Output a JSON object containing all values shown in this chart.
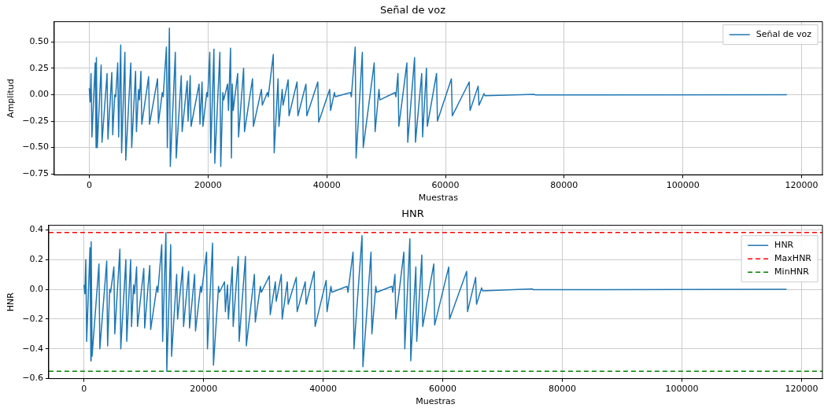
{
  "chart_data": [
    {
      "type": "line",
      "title": "Señal de voz",
      "xlabel": "Muestras",
      "ylabel": "Amplitud",
      "xlim": [
        -5900,
        123500
      ],
      "ylim": [
        -0.76,
        0.69
      ],
      "xticks": [
        0,
        20000,
        40000,
        60000,
        80000,
        100000,
        120000
      ],
      "yticks": [
        {
          "value": -0.75,
          "label": "−0.75"
        },
        {
          "value": -0.5,
          "label": "−0.50"
        },
        {
          "value": -0.25,
          "label": "−0.25"
        },
        {
          "value": 0,
          "label": "0.00"
        },
        {
          "value": 0.25,
          "label": "0.25"
        },
        {
          "value": 0.5,
          "label": "0.50"
        }
      ],
      "grid": true,
      "legend": "top right",
      "series": [
        {
          "name": "Señal de voz",
          "color": "#1f77b4",
          "x": [
            0,
            150,
            300,
            450,
            1000,
            1150,
            1200,
            1350,
            2000,
            2150,
            3000,
            3150,
            3800,
            3950,
            4300,
            4450,
            4800,
            4950,
            5300,
            5450,
            6000,
            6150,
            7000,
            7150,
            7800,
            7950,
            8300,
            8450,
            8700,
            8850,
            10000,
            10150,
            11500,
            11650,
            12300,
            12450,
            13000,
            13150,
            13500,
            13650,
            14500,
            14650,
            15500,
            15650,
            16500,
            16650,
            17000,
            17150,
            18500,
            18650,
            19000,
            19150,
            19800,
            19950,
            20300,
            20450,
            21000,
            21150,
            22000,
            22150,
            22500,
            22650,
            23300,
            23450,
            23800,
            23950,
            24100,
            24250,
            25000,
            25150,
            26000,
            26150,
            27500,
            27650,
            29000,
            29150,
            30000,
            30150,
            31000,
            31150,
            31800,
            31950,
            32500,
            32650,
            33500,
            33650,
            35000,
            35150,
            36500,
            36650,
            38500,
            38650,
            40500,
            40650,
            41300,
            41450,
            44000,
            44150,
            44800,
            44950,
            46000,
            46150,
            48000,
            48150,
            48800,
            48950,
            51500,
            51650,
            52000,
            52150,
            53500,
            53650,
            54800,
            54950,
            56000,
            56150,
            56800,
            56950,
            58500,
            58650,
            61000,
            61150,
            64000,
            64150,
            65500,
            65650,
            66500,
            66650,
            75000,
            75150,
            117500
          ],
          "values": [
            0.06,
            -0.07,
            0.2,
            -0.4,
            0.3,
            -0.5,
            0.35,
            -0.5,
            0.28,
            -0.45,
            0.2,
            -0.42,
            0.21,
            -0.38,
            0.0,
            -0.02,
            0.3,
            -0.4,
            0.47,
            -0.55,
            0.4,
            -0.62,
            0.3,
            -0.5,
            0.22,
            -0.35,
            0.05,
            -0.05,
            0.22,
            -0.28,
            0.17,
            -0.28,
            0.15,
            -0.27,
            0.02,
            -0.02,
            0.45,
            -0.5,
            0.63,
            -0.68,
            0.4,
            -0.6,
            0.18,
            -0.35,
            0.13,
            -0.25,
            0.18,
            -0.3,
            0.1,
            -0.28,
            0.12,
            -0.3,
            0.02,
            -0.02,
            0.4,
            -0.55,
            0.43,
            -0.65,
            0.4,
            -0.68,
            0.02,
            -0.05,
            0.1,
            -0.15,
            0.44,
            -0.6,
            0.1,
            -0.15,
            0.2,
            -0.4,
            0.25,
            -0.35,
            0.15,
            -0.3,
            0.05,
            -0.1,
            0.02,
            -0.02,
            0.38,
            -0.55,
            0.15,
            -0.3,
            0.05,
            -0.1,
            0.14,
            -0.2,
            0.12,
            -0.2,
            0.1,
            -0.2,
            0.12,
            -0.26,
            0.05,
            -0.15,
            0.02,
            -0.02,
            0.02,
            -0.02,
            0.45,
            -0.6,
            0.4,
            -0.5,
            0.3,
            -0.35,
            0.05,
            -0.05,
            0.02,
            -0.02,
            0.2,
            -0.3,
            0.3,
            -0.45,
            0.35,
            -0.45,
            0.2,
            -0.4,
            0.25,
            -0.3,
            0.2,
            -0.25,
            0.15,
            -0.2,
            0.12,
            -0.15,
            0.08,
            -0.1,
            0.01,
            -0.01,
            0.003,
            -0.003,
            0
          ]
        }
      ]
    },
    {
      "type": "line",
      "title": "HNR",
      "xlabel": "Muestras",
      "ylabel": "HNR",
      "xlim": [
        -5900,
        123500
      ],
      "ylim": [
        -0.6,
        0.43
      ],
      "xticks": [
        0,
        20000,
        40000,
        60000,
        80000,
        100000,
        120000
      ],
      "yticks": [
        {
          "value": -0.6,
          "label": "−0.6"
        },
        {
          "value": -0.4,
          "label": "−0.4"
        },
        {
          "value": -0.2,
          "label": "−0.2"
        },
        {
          "value": 0,
          "label": "0.0"
        },
        {
          "value": 0.2,
          "label": "0.2"
        },
        {
          "value": 0.4,
          "label": "0.4"
        }
      ],
      "grid": true,
      "legend": "top right",
      "series": [
        {
          "name": "HNR",
          "color": "#1f77b4",
          "x": [
            0,
            150,
            300,
            450,
            1000,
            1150,
            1200,
            1350,
            2500,
            2650,
            3800,
            3950,
            4300,
            4450,
            5000,
            5150,
            6000,
            6150,
            7000,
            7150,
            7800,
            7950,
            8300,
            8450,
            8800,
            8950,
            10000,
            10150,
            11000,
            11150,
            12200,
            12350,
            13000,
            13150,
            13700,
            13850,
            14500,
            14650,
            15500,
            15650,
            16500,
            16650,
            17500,
            17650,
            18500,
            18650,
            19500,
            19650,
            20500,
            20650,
            21500,
            21650,
            22500,
            22650,
            23500,
            23650,
            24000,
            24150,
            24800,
            24950,
            25800,
            25950,
            27000,
            27150,
            28500,
            28650,
            29500,
            29650,
            31000,
            31150,
            32000,
            32150,
            33000,
            33150,
            34000,
            34150,
            35500,
            35650,
            37000,
            37150,
            38500,
            38650,
            40500,
            40650,
            41300,
            41450,
            44000,
            44150,
            45000,
            45150,
            46500,
            46650,
            48000,
            48150,
            48800,
            48950,
            51500,
            51650,
            52000,
            52150,
            53500,
            53650,
            54500,
            54650,
            55500,
            55650,
            56500,
            56650,
            58500,
            58650,
            61000,
            61150,
            64000,
            64150,
            65500,
            65650,
            66500,
            66650,
            75000,
            75150,
            117500
          ],
          "values": [
            0.03,
            -0.03,
            0.2,
            -0.35,
            0.28,
            -0.48,
            0.32,
            -0.45,
            0.17,
            -0.4,
            0.19,
            -0.38,
            0.0,
            -0.02,
            0.15,
            -0.3,
            0.27,
            -0.4,
            0.2,
            -0.35,
            0.2,
            -0.25,
            0.03,
            -0.03,
            0.15,
            -0.25,
            0.14,
            -0.26,
            0.16,
            -0.27,
            0.02,
            -0.02,
            0.3,
            -0.35,
            0.38,
            -0.55,
            0.3,
            -0.45,
            0.1,
            -0.2,
            0.15,
            -0.25,
            0.12,
            -0.26,
            0.1,
            -0.28,
            0.02,
            -0.02,
            0.25,
            -0.4,
            0.31,
            -0.51,
            0.02,
            -0.02,
            0.05,
            -0.15,
            0.03,
            -0.2,
            0.15,
            -0.25,
            0.22,
            -0.35,
            0.22,
            -0.38,
            0.1,
            -0.22,
            0.02,
            -0.02,
            0.09,
            -0.17,
            0.05,
            -0.08,
            0.1,
            -0.2,
            0.05,
            -0.1,
            0.08,
            -0.15,
            0.05,
            -0.1,
            0.12,
            -0.25,
            0.06,
            -0.15,
            0.02,
            -0.02,
            0.02,
            -0.02,
            0.25,
            -0.4,
            0.36,
            -0.52,
            0.25,
            -0.3,
            0.02,
            -0.02,
            0.02,
            -0.02,
            0.1,
            -0.2,
            0.25,
            -0.4,
            0.34,
            -0.48,
            0.15,
            -0.35,
            0.23,
            -0.25,
            0.17,
            -0.24,
            0.15,
            -0.2,
            0.12,
            -0.15,
            0.08,
            -0.1,
            0.01,
            -0.01,
            0.003,
            -0.003,
            0
          ]
        }
      ],
      "ref_lines": [
        {
          "axis": "y",
          "value": 0.382,
          "label": "MaxHNR",
          "color": "#ff0000",
          "line_style": "dashed"
        },
        {
          "axis": "y",
          "value": -0.55,
          "label": "MinHNR",
          "color": "#008000",
          "line_style": "dashed"
        }
      ]
    }
  ]
}
